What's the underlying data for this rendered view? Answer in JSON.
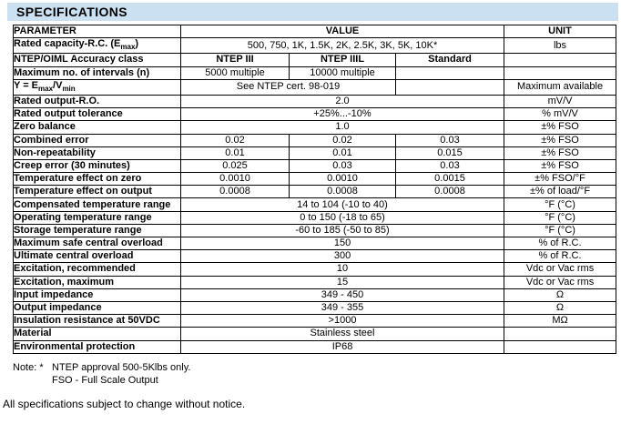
{
  "title": "SPECIFICATIONS",
  "colors": {
    "title_bg": "#cbe1f2",
    "border": "#000000",
    "text": "#000000"
  },
  "table": {
    "rows": [
      {
        "cells": [
          {
            "t": "PARAMETER",
            "b": true
          },
          {
            "t": "VALUE",
            "cs": 3,
            "b": true
          },
          {
            "t": "UNIT",
            "b": true
          }
        ]
      },
      {
        "cells": [
          {
            "seg": [
              {
                "t": "Rated capacity-R.C. (E"
              },
              {
                "t": "max",
                "sub": true
              },
              {
                "t": ")"
              }
            ],
            "b": true
          },
          {
            "t": "500, 750, 1K, 1.5K, 2K, 2.5K, 3K, 5K, 10K*",
            "cs": 3
          },
          {
            "t": "lbs"
          }
        ]
      },
      {
        "cells": [
          {
            "t": "NTEP/OIML Accuracy class",
            "b": true
          },
          {
            "t": "NTEP III",
            "b": true
          },
          {
            "t": "NTEP IIIL",
            "b": true
          },
          {
            "t": "Standard",
            "b": true
          },
          {
            "t": ""
          }
        ]
      },
      {
        "cells": [
          {
            "t": "Maximum no. of intervals (n)",
            "b": true
          },
          {
            "t": "5000 multiple"
          },
          {
            "t": "10000 multiple"
          },
          {
            "t": ""
          },
          {
            "t": ""
          }
        ]
      },
      {
        "cells": [
          {
            "seg": [
              {
                "t": "Y = E"
              },
              {
                "t": "max",
                "sub": true
              },
              {
                "t": "/V"
              },
              {
                "t": "min",
                "sub": true
              }
            ],
            "b": true
          },
          {
            "t": "See NTEP cert. 98-019",
            "cs": 2
          },
          {
            "t": ""
          },
          {
            "t": "Maximum available"
          }
        ]
      },
      {
        "cells": [
          {
            "t": "Rated output-R.O.",
            "b": true
          },
          {
            "t": "2.0",
            "cs": 3
          },
          {
            "t": "mV/V"
          }
        ]
      },
      {
        "cells": [
          {
            "t": "Rated output tolerance",
            "b": true
          },
          {
            "t": "+25%...-10%",
            "cs": 3
          },
          {
            "t": "% mV/V"
          }
        ]
      },
      {
        "cells": [
          {
            "t": "Zero balance",
            "b": true
          },
          {
            "t": "1.0",
            "cs": 3
          },
          {
            "t": "±% FSO"
          }
        ]
      },
      {
        "cells": [
          {
            "t": "Combined error",
            "b": true
          },
          {
            "t": "0.02"
          },
          {
            "t": "0.02"
          },
          {
            "t": "0.03"
          },
          {
            "t": "±% FSO"
          }
        ]
      },
      {
        "cells": [
          {
            "t": "Non-repeatability",
            "b": true
          },
          {
            "t": "0.01"
          },
          {
            "t": "0.01"
          },
          {
            "t": "0.015"
          },
          {
            "t": "±% FSO"
          }
        ]
      },
      {
        "cells": [
          {
            "t": "Creep error (30 minutes)",
            "b": true
          },
          {
            "t": "0.025"
          },
          {
            "t": "0.03"
          },
          {
            "t": "0.03"
          },
          {
            "t": "±% FSO"
          }
        ]
      },
      {
        "cells": [
          {
            "t": "Temperature effect on zero",
            "b": true
          },
          {
            "t": "0.0010"
          },
          {
            "t": "0.0010"
          },
          {
            "t": "0.0015"
          },
          {
            "t": "±% FSO/°F"
          }
        ]
      },
      {
        "cells": [
          {
            "t": "Temperature effect on output",
            "b": true
          },
          {
            "t": "0.0008"
          },
          {
            "t": "0.0008"
          },
          {
            "t": "0.0008"
          },
          {
            "t": "±% of load/°F"
          }
        ]
      },
      {
        "cells": [
          {
            "t": "Compensated temperature range",
            "b": true
          },
          {
            "t": "14 to 104 (-10 to 40)",
            "cs": 3
          },
          {
            "t": "°F (°C)"
          }
        ]
      },
      {
        "cells": [
          {
            "t": "Operating temperature range",
            "b": true
          },
          {
            "t": "0 to 150 (-18 to 65)",
            "cs": 3
          },
          {
            "t": "°F (°C)"
          }
        ]
      },
      {
        "cells": [
          {
            "t": "Storage temperature range",
            "b": true
          },
          {
            "t": "-60 to 185 (-50 to 85)",
            "cs": 3
          },
          {
            "t": "°F (°C)"
          }
        ]
      },
      {
        "cells": [
          {
            "t": "Maximum safe central overload",
            "b": true
          },
          {
            "t": "150",
            "cs": 3
          },
          {
            "t": "% of R.C."
          }
        ]
      },
      {
        "cells": [
          {
            "t": "Ultimate central overload",
            "b": true
          },
          {
            "t": "300",
            "cs": 3
          },
          {
            "t": "% of R.C."
          }
        ]
      },
      {
        "cells": [
          {
            "t": "Excitation, recommended",
            "b": true
          },
          {
            "t": "10",
            "cs": 3
          },
          {
            "t": "Vdc or Vac rms"
          }
        ]
      },
      {
        "cells": [
          {
            "t": "Excitation, maximum",
            "b": true
          },
          {
            "t": "15",
            "cs": 3
          },
          {
            "t": "Vdc or Vac rms"
          }
        ]
      },
      {
        "cells": [
          {
            "t": "Input impedance",
            "b": true
          },
          {
            "t": "349 - 450",
            "cs": 3
          },
          {
            "t": "Ω"
          }
        ]
      },
      {
        "cells": [
          {
            "t": "Output impedance",
            "b": true
          },
          {
            "t": "349 - 355",
            "cs": 3
          },
          {
            "t": "Ω"
          }
        ]
      },
      {
        "cells": [
          {
            "t": "Insulation resistance at 50VDC",
            "b": true
          },
          {
            "t": ">1000",
            "cs": 3
          },
          {
            "t": "MΩ"
          }
        ]
      },
      {
        "cells": [
          {
            "t": "Material",
            "b": true
          },
          {
            "t": "Stainless steel",
            "cs": 3
          },
          {
            "t": ""
          }
        ]
      },
      {
        "cells": [
          {
            "t": "Environmental protection",
            "b": true
          },
          {
            "t": "IP68",
            "cs": 3
          },
          {
            "t": ""
          }
        ]
      }
    ]
  },
  "notes": {
    "label": "Note: *",
    "line1": "NTEP approval 500-5Klbs only.",
    "line2": "FSO - Full Scale Output"
  },
  "footer": "All specifications subject to change without notice."
}
